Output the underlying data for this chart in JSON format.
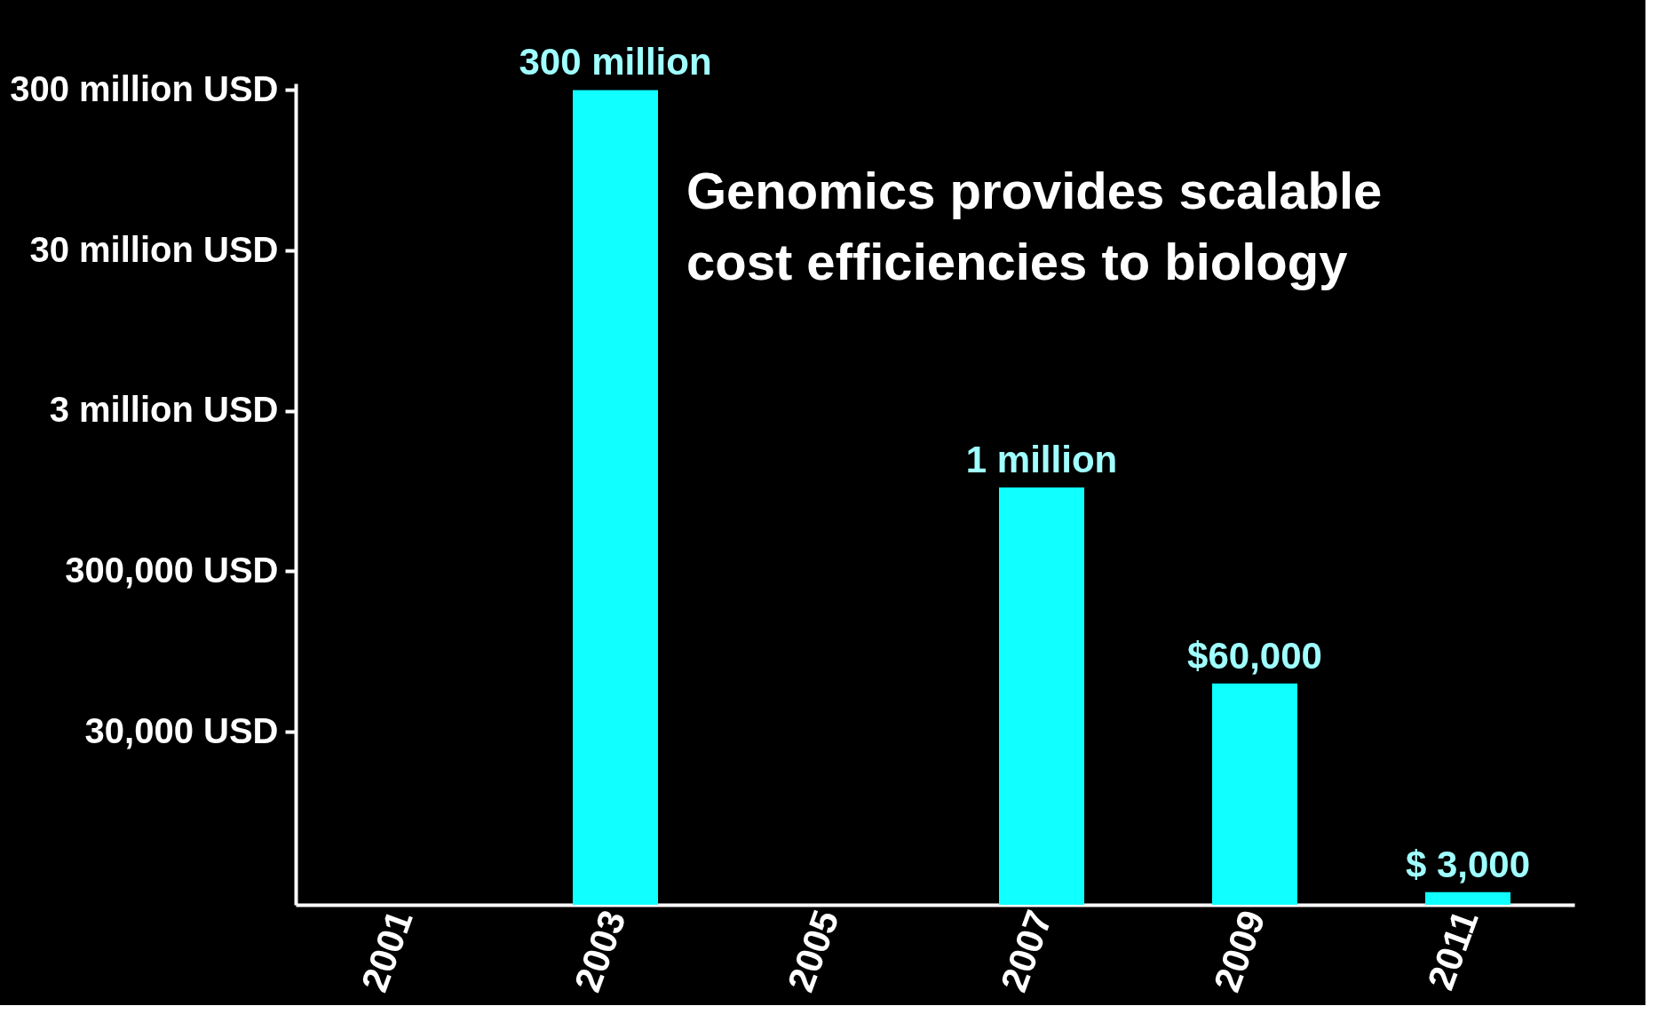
{
  "chart_data": {
    "type": "bar",
    "title": "Genomics provides scalable\ncost efficiencies to biology",
    "categories": [
      "2001",
      "2003",
      "2005",
      "2007",
      "2009",
      "2011"
    ],
    "values": [
      null,
      300000000,
      null,
      1000000,
      60000,
      3000
    ],
    "value_labels": [
      null,
      "300 million",
      null,
      "1 million",
      "$60,000",
      "$ 3,000"
    ],
    "color": "#10ffff",
    "log": true,
    "ylim": [
      2500,
      330000000
    ],
    "yticks": [
      {
        "value": 30000,
        "label": "30,000 USD"
      },
      {
        "value": 300000,
        "label": "300,000 USD"
      },
      {
        "value": 3000000,
        "label": "3 million USD"
      },
      {
        "value": 30000000,
        "label": "30 million USD"
      },
      {
        "value": 300000000,
        "label": "300 million USD"
      }
    ],
    "grid": false
  }
}
